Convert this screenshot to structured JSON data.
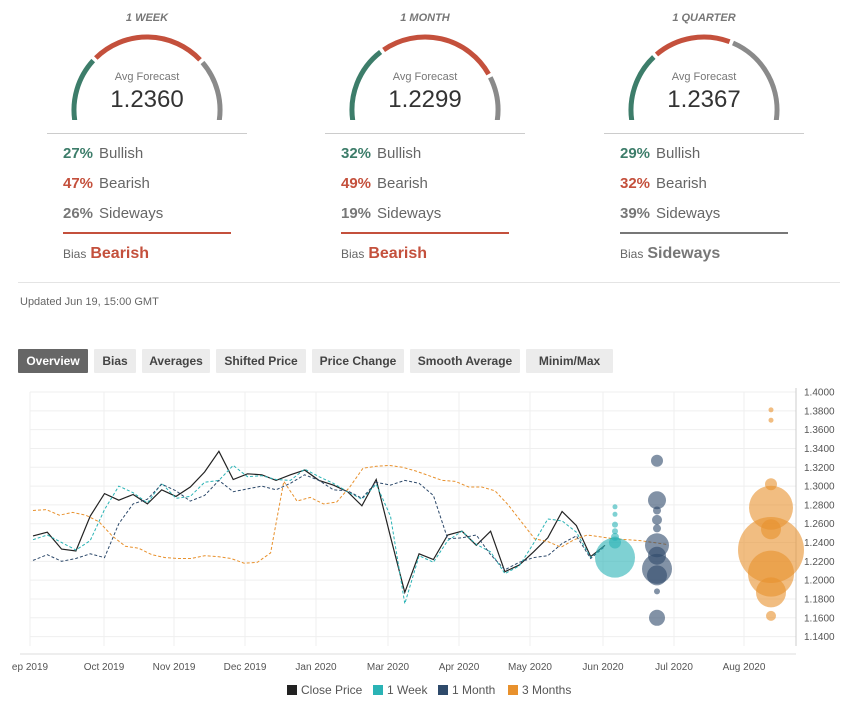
{
  "forecasts": [
    {
      "period": "1 WEEK",
      "avg_label": "Avg Forecast",
      "avg_value": "1.2360",
      "bullish_pct": "27%",
      "bullish_label": "Bullish",
      "bearish_pct": "47%",
      "bearish_label": "Bearish",
      "sideways_pct": "26%",
      "sideways_label": "Sideways",
      "bias_label": "Bias",
      "bias_value": "Bearish",
      "bias_color": "#c4503c"
    },
    {
      "period": "1 MONTH",
      "avg_label": "Avg Forecast",
      "avg_value": "1.2299",
      "bullish_pct": "32%",
      "bullish_label": "Bullish",
      "bearish_pct": "49%",
      "bearish_label": "Bearish",
      "sideways_pct": "19%",
      "sideways_label": "Sideways",
      "bias_label": "Bias",
      "bias_value": "Bearish",
      "bias_color": "#c4503c"
    },
    {
      "period": "1 QUARTER",
      "avg_label": "Avg Forecast",
      "avg_value": "1.2367",
      "bullish_pct": "29%",
      "bullish_label": "Bullish",
      "bearish_pct": "32%",
      "bearish_label": "Bearish",
      "sideways_pct": "39%",
      "sideways_label": "Sideways",
      "bias_label": "Bias",
      "bias_value": "Sideways",
      "bias_color": "#777777"
    }
  ],
  "colors": {
    "bullish": "#3d7d6a",
    "bearish": "#c4503c",
    "sideways": "#8a8a8a"
  },
  "updated": "Updated Jun 19, 15:00 GMT",
  "tabs": [
    {
      "label": "Overview",
      "active": true
    },
    {
      "label": "Bias",
      "active": false
    },
    {
      "label": "Averages",
      "active": false
    },
    {
      "label": "Shifted Price",
      "active": false
    },
    {
      "label": "Price Change",
      "active": false
    },
    {
      "label": "Smooth Average",
      "active": false
    },
    {
      "label": "Minim/Max",
      "active": false
    }
  ],
  "chart_data": {
    "type": "line",
    "x_tick_labels": [
      "ep 2019",
      "Oct 2019",
      "Nov 2019",
      "Dec 2019",
      "Jan 2020",
      "Mar 2020",
      "Apr 2020",
      "May 2020",
      "Jun 2020",
      "Jul 2020",
      "Aug 2020"
    ],
    "y_tick_labels": [
      "1.4000",
      "1.3800",
      "1.3600",
      "1.3400",
      "1.3200",
      "1.3000",
      "1.2800",
      "1.2600",
      "1.2400",
      "1.2200",
      "1.2000",
      "1.1800",
      "1.1600",
      "1.1400"
    ],
    "ylim": [
      1.13,
      1.4
    ],
    "series": [
      {
        "name": "Close Price",
        "color": "#222222",
        "style": "solid",
        "values": [
          1.247,
          1.251,
          1.233,
          1.231,
          1.268,
          1.292,
          1.285,
          1.291,
          1.281,
          1.296,
          1.289,
          1.299,
          1.315,
          1.337,
          1.307,
          1.313,
          1.312,
          1.306,
          1.312,
          1.317,
          1.306,
          1.301,
          1.294,
          1.279,
          1.307,
          1.246,
          1.187,
          1.228,
          1.222,
          1.248,
          1.252,
          1.237,
          1.252,
          1.209,
          1.216,
          1.23,
          1.245,
          1.273,
          1.258,
          1.225,
          1.237
        ]
      },
      {
        "name": "1 Week",
        "color": "#2ab3b5",
        "style": "dashed",
        "values": [
          1.243,
          1.248,
          1.24,
          1.232,
          1.242,
          1.275,
          1.3,
          1.293,
          1.282,
          1.303,
          1.287,
          1.289,
          1.304,
          1.306,
          1.322,
          1.31,
          1.311,
          1.307,
          1.306,
          1.318,
          1.31,
          1.303,
          1.294,
          1.286,
          1.302,
          1.268,
          1.175,
          1.226,
          1.219,
          1.242,
          1.252,
          1.238,
          1.23,
          1.207,
          1.215,
          1.239,
          1.265,
          1.263,
          1.251,
          1.224,
          1.236
        ]
      },
      {
        "name": "1 Month",
        "color": "#2e4a6b",
        "style": "dashed",
        "values": [
          1.221,
          1.227,
          1.22,
          1.223,
          1.228,
          1.224,
          1.26,
          1.281,
          1.286,
          1.302,
          1.295,
          1.284,
          1.29,
          1.306,
          1.294,
          1.297,
          1.3,
          1.296,
          1.303,
          1.312,
          1.306,
          1.296,
          1.295,
          1.287,
          1.304,
          1.301,
          1.306,
          1.303,
          1.29,
          1.244,
          1.245,
          1.248,
          1.227,
          1.211,
          1.219,
          1.224,
          1.226,
          1.239,
          1.247,
          1.223,
          1.236
        ]
      },
      {
        "name": "3 Months",
        "color": "#e8912d",
        "style": "dashed",
        "values": [
          1.274,
          1.275,
          1.269,
          1.272,
          1.269,
          1.262,
          1.247,
          1.236,
          1.234,
          1.227,
          1.224,
          1.223,
          1.223,
          1.226,
          1.225,
          1.223,
          1.218,
          1.219,
          1.229,
          1.305,
          1.284,
          1.288,
          1.281,
          1.283,
          1.299,
          1.319,
          1.321,
          1.322,
          1.32,
          1.316,
          1.311,
          1.306,
          1.305,
          1.299,
          1.299,
          1.295,
          1.28,
          1.262,
          1.244,
          1.241,
          1.235,
          1.243,
          1.248,
          1.246,
          1.244,
          1.243,
          1.242,
          1.24,
          1.238
        ]
      }
    ],
    "forecast_bubbles": [
      {
        "group": "1 Week",
        "color": "#2ab3b5",
        "values": [
          1.278,
          1.27,
          1.259,
          1.252,
          1.246,
          1.24,
          1.224
        ]
      },
      {
        "group": "1 Month",
        "color": "#2e4a6b",
        "values": [
          1.327,
          1.285,
          1.274,
          1.264,
          1.255,
          1.237,
          1.226,
          1.212,
          1.205,
          1.188,
          1.16
        ]
      },
      {
        "group": "3 Months",
        "color": "#e8912d",
        "values": [
          1.381,
          1.37,
          1.302,
          1.277,
          1.254,
          1.232,
          1.207,
          1.187,
          1.162
        ]
      }
    ],
    "legend_position": "bottom",
    "grid": true
  }
}
